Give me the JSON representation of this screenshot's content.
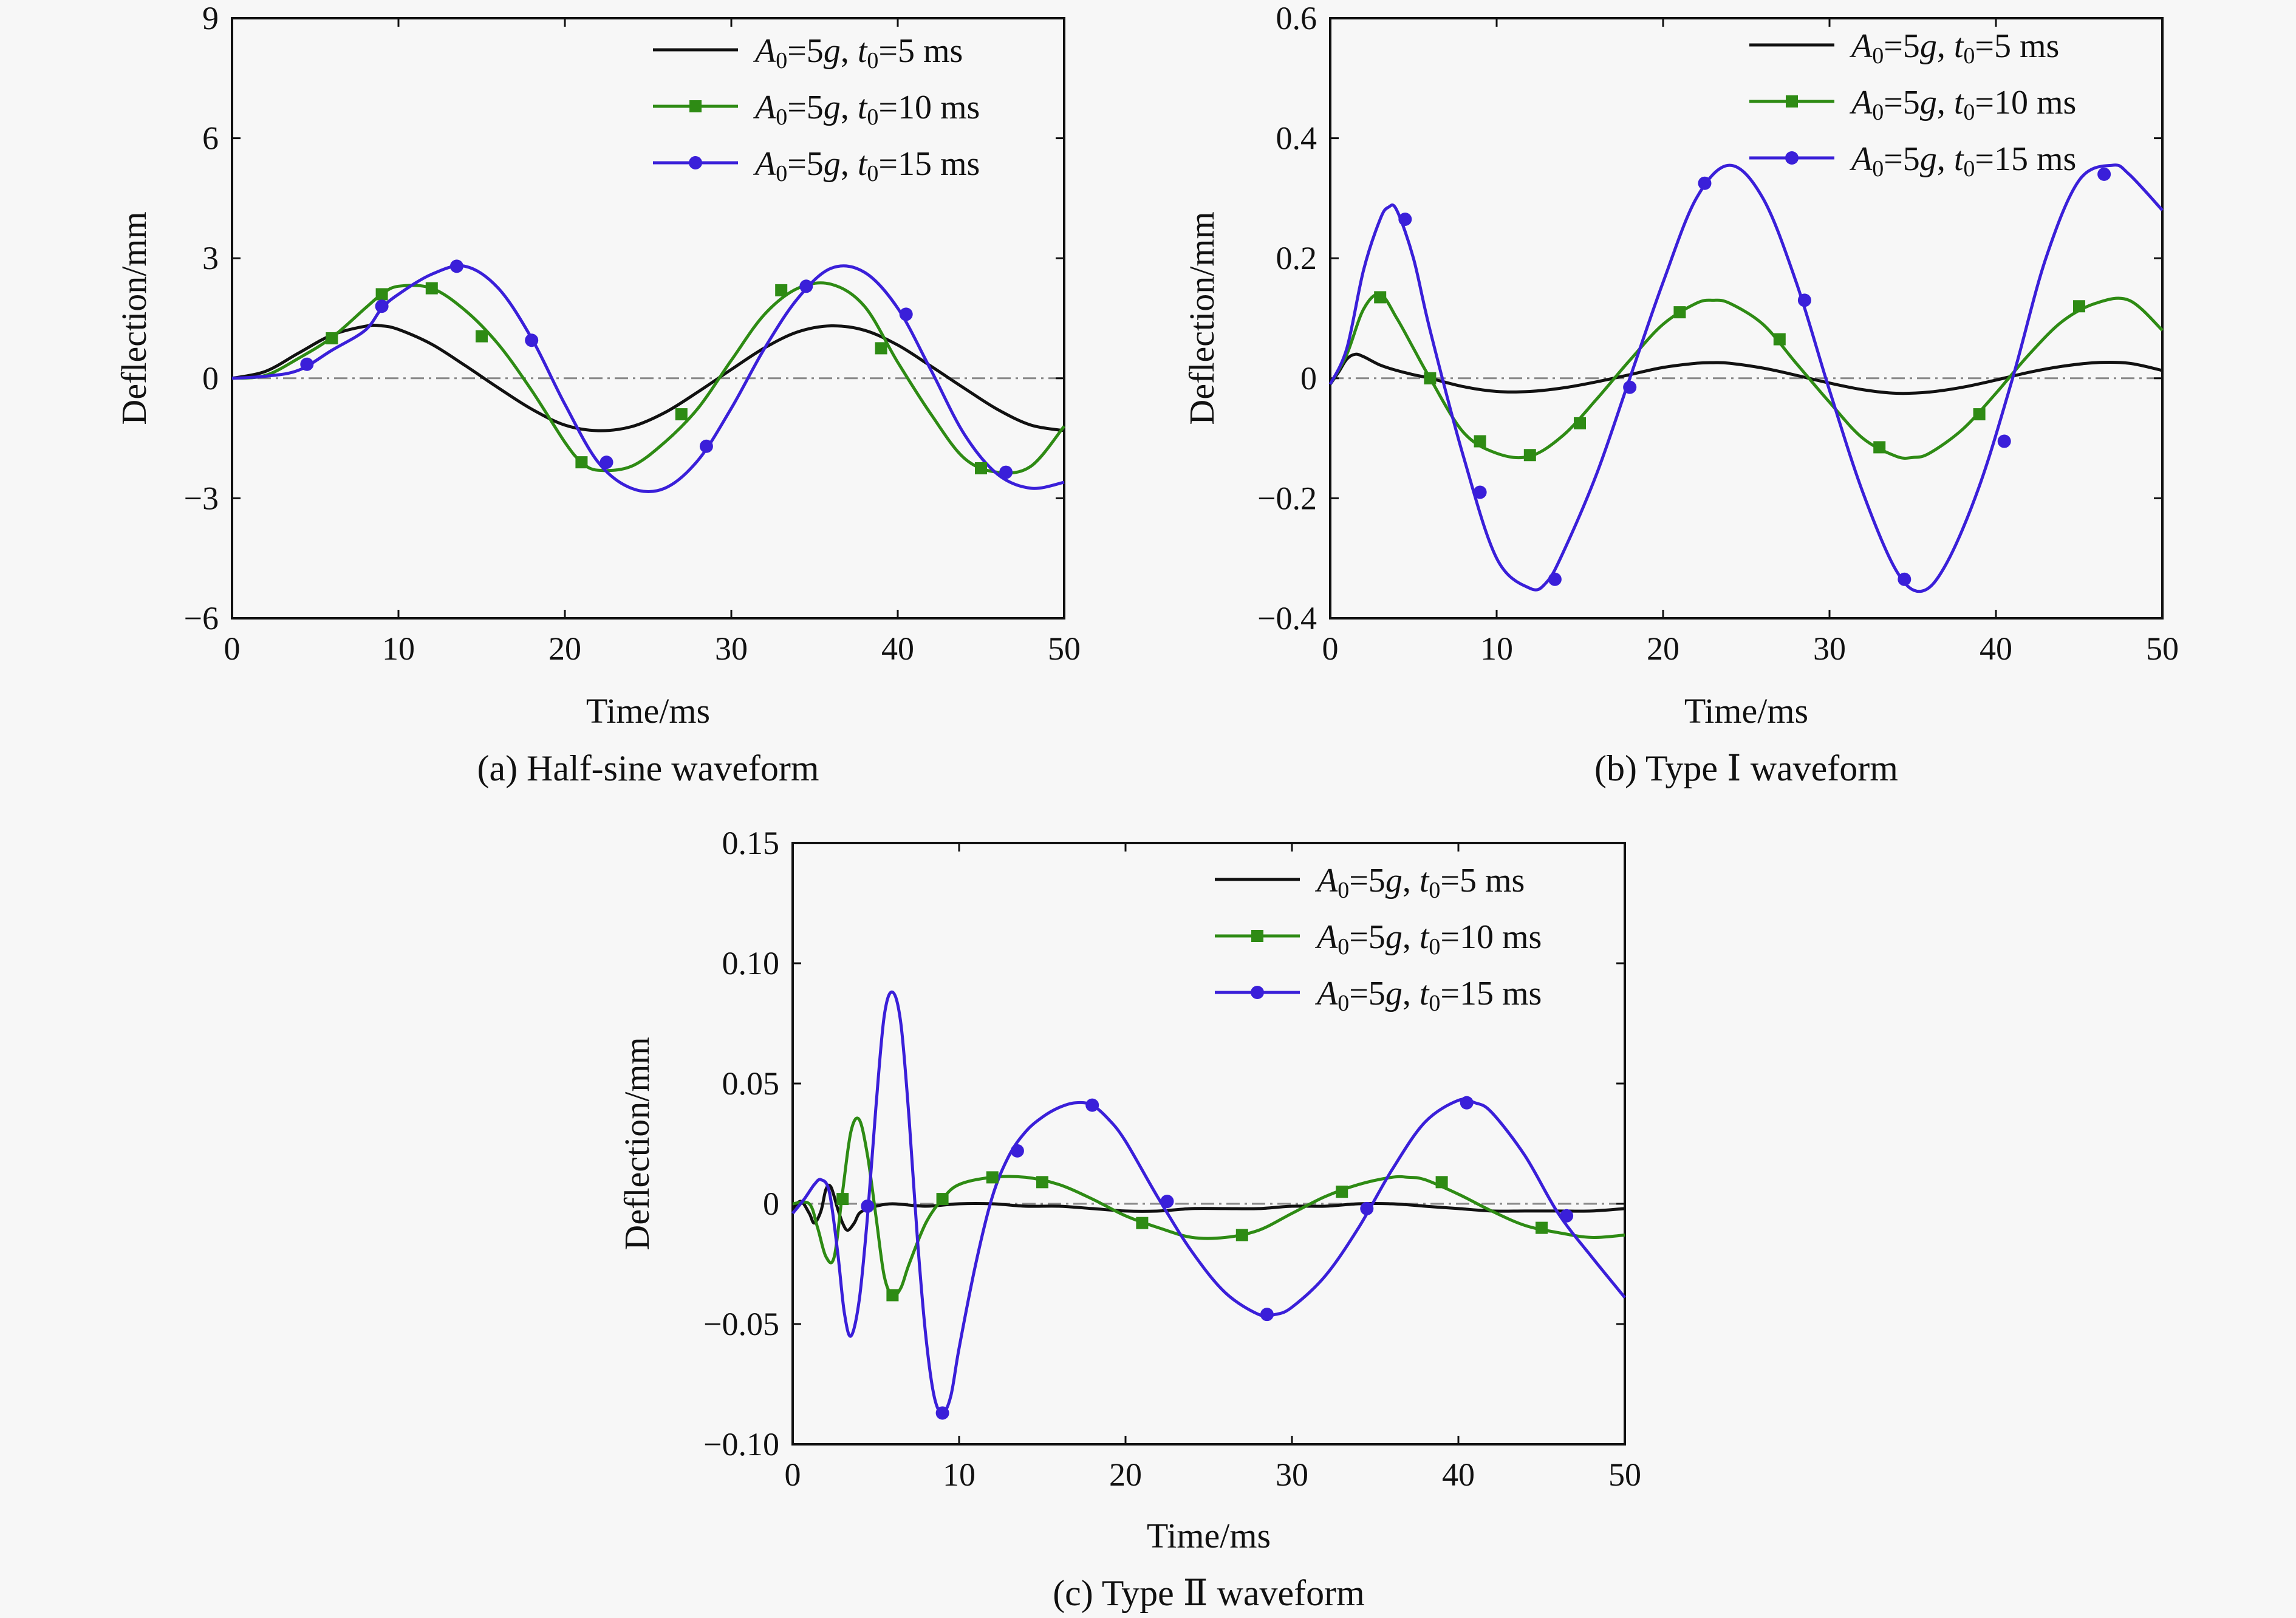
{
  "colors": {
    "black": "#111111",
    "green": "#2e8b14",
    "blue": "#3a1fd9",
    "zero": "#8a8a8a",
    "background": "#f7f7f7"
  },
  "legend": [
    {
      "A": "A",
      "A_sub": "0",
      "eq1": "=5",
      "g": "g",
      "sep": ", ",
      "t": "t",
      "t_sub": "0",
      "eq2": "=5 ms",
      "color": "black",
      "marker": "none"
    },
    {
      "A": "A",
      "A_sub": "0",
      "eq1": "=5",
      "g": "g",
      "sep": ", ",
      "t": "t",
      "t_sub": "0",
      "eq2": "=10 ms",
      "color": "green",
      "marker": "square"
    },
    {
      "A": "A",
      "A_sub": "0",
      "eq1": "=5",
      "g": "g",
      "sep": ", ",
      "t": "t",
      "t_sub": "0",
      "eq2": "=15 ms",
      "color": "blue",
      "marker": "circle"
    }
  ],
  "chart_data": [
    {
      "type": "line",
      "caption": "(a) Half-sine waveform",
      "xlabel": "Time/ms",
      "ylabel": "Deflection/mm",
      "xlim": [
        0,
        50
      ],
      "ylim": [
        -6,
        9
      ],
      "xticks": [
        0,
        10,
        20,
        30,
        40,
        50
      ],
      "yticks": [
        -6,
        -3,
        0,
        3,
        6,
        9
      ],
      "ytick_labels": [
        "−6",
        "−3",
        "0",
        "3",
        "6",
        "9"
      ],
      "legend_position": "top-right",
      "series": [
        {
          "name": "A0=5g, t0=5 ms",
          "color": "black",
          "marker": "none",
          "x": [
            0,
            2,
            4,
            6,
            8,
            9,
            10,
            12,
            14,
            16,
            18,
            20,
            22,
            24,
            26,
            28,
            30,
            32,
            34,
            36,
            38,
            40,
            42,
            44,
            46,
            48,
            50
          ],
          "y": [
            0,
            0.17,
            0.63,
            1.08,
            1.3,
            1.31,
            1.22,
            0.85,
            0.32,
            -0.24,
            -0.77,
            -1.17,
            -1.31,
            -1.21,
            -0.86,
            -0.34,
            0.22,
            0.76,
            1.16,
            1.31,
            1.2,
            0.83,
            0.3,
            -0.25,
            -0.78,
            -1.17,
            -1.31
          ]
        },
        {
          "name": "A0=5g, t0=10 ms",
          "color": "green",
          "marker": "square",
          "x": [
            0,
            2,
            4,
            6,
            8,
            9,
            10,
            12,
            14,
            16,
            18,
            20,
            21,
            22,
            24,
            26,
            28,
            30,
            32,
            34,
            36,
            38,
            40,
            42,
            44,
            46,
            48,
            50
          ],
          "y": [
            0,
            0.07,
            0.5,
            1.02,
            1.75,
            2.1,
            2.3,
            2.25,
            1.7,
            0.85,
            -0.3,
            -1.6,
            -2.1,
            -2.3,
            -2.2,
            -1.6,
            -0.75,
            0.45,
            1.6,
            2.25,
            2.35,
            1.8,
            0.4,
            -0.9,
            -2,
            -2.35,
            -2.2,
            -1.2
          ]
        },
        {
          "name": "A0=5g, t0=15 ms",
          "color": "blue",
          "marker": "circle",
          "x": [
            0,
            2,
            4,
            6,
            8,
            9,
            10,
            12,
            14,
            16,
            18,
            20,
            22,
            24,
            26,
            28,
            30,
            32,
            34,
            36,
            38,
            40,
            42,
            44,
            46,
            48,
            50
          ],
          "y": [
            0,
            0.05,
            0.2,
            0.7,
            1.2,
            1.75,
            2.1,
            2.6,
            2.8,
            2.25,
            1,
            -0.65,
            -2.1,
            -2.75,
            -2.75,
            -2.05,
            -0.75,
            0.75,
            2,
            2.75,
            2.65,
            1.75,
            0.2,
            -1.4,
            -2.4,
            -2.75,
            -2.6
          ]
        }
      ],
      "markers": {
        "green": {
          "x": [
            6,
            9,
            12,
            15,
            21,
            27,
            33,
            39,
            45
          ],
          "y": [
            1.0,
            2.1,
            2.25,
            1.05,
            -2.1,
            -0.9,
            2.2,
            0.75,
            -2.25
          ]
        },
        "blue": {
          "x": [
            4.5,
            9,
            13.5,
            18,
            22.5,
            28.5,
            34.5,
            40.5,
            46.5
          ],
          "y": [
            0.35,
            1.8,
            2.8,
            0.95,
            -2.1,
            -1.7,
            2.3,
            1.6,
            -2.35
          ]
        }
      }
    },
    {
      "type": "line",
      "caption": "(b) Type Ⅰ waveform",
      "xlabel": "Time/ms",
      "ylabel": "Deflection/mm",
      "xlim": [
        0,
        50
      ],
      "ylim": [
        -0.4,
        0.6
      ],
      "xticks": [
        0,
        10,
        20,
        30,
        40,
        50
      ],
      "yticks": [
        -0.4,
        -0.2,
        0,
        0.2,
        0.4,
        0.6
      ],
      "ytick_labels": [
        "−0.4",
        "−0.2",
        "0",
        "0.2",
        "0.4",
        "0.6"
      ],
      "legend_position": "top-right",
      "series": [
        {
          "name": "A0=5g, t0=5 ms",
          "color": "black",
          "marker": "none",
          "x": [
            0,
            0.5,
            1,
            1.5,
            2,
            3,
            4,
            5,
            6,
            8,
            10,
            12,
            14,
            16,
            18,
            20,
            22,
            23,
            24,
            26,
            28,
            30,
            32,
            34,
            36,
            38,
            40,
            42,
            44,
            46,
            48,
            50
          ],
          "y": [
            -0.01,
            0.01,
            0.032,
            0.04,
            0.036,
            0.022,
            0.013,
            0.006,
            0,
            -0.014,
            -0.022,
            -0.022,
            -0.016,
            -0.006,
            0.006,
            0.018,
            0.025,
            0.026,
            0.025,
            0.017,
            0.005,
            -0.008,
            -0.019,
            -0.025,
            -0.023,
            -0.015,
            -0.003,
            0.01,
            0.02,
            0.026,
            0.025,
            0.013
          ]
        },
        {
          "name": "A0=5g, t0=10 ms",
          "color": "green",
          "marker": "square",
          "x": [
            0,
            1,
            2,
            3,
            4,
            5,
            6,
            8,
            10,
            12,
            14,
            16,
            18,
            20,
            22,
            23,
            24,
            26,
            28,
            30,
            32,
            34,
            35,
            36,
            38,
            40,
            42,
            44,
            46,
            48,
            50
          ],
          "y": [
            -0.01,
            0.04,
            0.115,
            0.14,
            0.1,
            0.05,
            0,
            -0.09,
            -0.125,
            -0.13,
            -0.095,
            -0.035,
            0.03,
            0.09,
            0.125,
            0.13,
            0.125,
            0.09,
            0.025,
            -0.04,
            -0.1,
            -0.13,
            -0.132,
            -0.125,
            -0.085,
            -0.025,
            0.04,
            0.095,
            0.125,
            0.13,
            0.08
          ]
        },
        {
          "name": "A0=5g, t0=15 ms",
          "color": "blue",
          "marker": "circle",
          "x": [
            0,
            1,
            2,
            3,
            3.5,
            4,
            5,
            6,
            8,
            10,
            12,
            13,
            14,
            16,
            18,
            20,
            22,
            24,
            26,
            28,
            30,
            32,
            34,
            35.5,
            37,
            39,
            41,
            43,
            45,
            47,
            48,
            50
          ],
          "y": [
            -0.01,
            0.05,
            0.18,
            0.265,
            0.285,
            0.28,
            0.2,
            0.08,
            -0.13,
            -0.3,
            -0.35,
            -0.34,
            -0.29,
            -0.16,
            0,
            0.16,
            0.3,
            0.355,
            0.3,
            0.16,
            -0.02,
            -0.19,
            -0.32,
            -0.355,
            -0.31,
            -0.18,
            0,
            0.2,
            0.33,
            0.355,
            0.34,
            0.28
          ]
        }
      ],
      "markers": {
        "green": {
          "x": [
            3,
            6,
            9,
            12,
            15,
            21,
            27,
            33,
            39,
            45
          ],
          "y": [
            0.135,
            0,
            -0.105,
            -0.128,
            -0.075,
            0.11,
            0.065,
            -0.115,
            -0.06,
            0.12
          ]
        },
        "blue": {
          "x": [
            4.5,
            9,
            13.5,
            18,
            22.5,
            28.5,
            34.5,
            40.5,
            46.5
          ],
          "y": [
            0.265,
            -0.19,
            -0.335,
            -0.015,
            0.325,
            0.13,
            -0.335,
            -0.105,
            0.34
          ]
        }
      }
    },
    {
      "type": "line",
      "caption": "(c) Type Ⅱ waveform",
      "xlabel": "Time/ms",
      "ylabel": "Deflection/mm",
      "xlim": [
        0,
        50
      ],
      "ylim": [
        -0.1,
        0.15
      ],
      "xticks": [
        0,
        10,
        20,
        30,
        40,
        50
      ],
      "yticks": [
        -0.1,
        -0.05,
        0,
        0.05,
        0.1,
        0.15
      ],
      "ytick_labels": [
        "−0.10",
        "−0.05",
        "0",
        "0.05",
        "0.10",
        "0.15"
      ],
      "legend_position": "top-right",
      "series": [
        {
          "name": "A0=5g, t0=5 ms",
          "color": "black",
          "marker": "none",
          "x": [
            0,
            0.5,
            1,
            1.3,
            1.7,
            2,
            2.3,
            2.7,
            3,
            3.3,
            3.7,
            4,
            4.5,
            5,
            6,
            8,
            10,
            12,
            14,
            16,
            18,
            20,
            22,
            24,
            26,
            28,
            30,
            32,
            34,
            36,
            38,
            40,
            42,
            44,
            46,
            48,
            50
          ],
          "y": [
            -0.002,
            0.001,
            -0.004,
            -0.008,
            -0.003,
            0.006,
            0.007,
            -0.002,
            -0.008,
            -0.011,
            -0.008,
            -0.004,
            -0.002,
            -0.001,
            0,
            -0.001,
            0,
            0,
            -0.001,
            -0.001,
            -0.002,
            -0.003,
            -0.003,
            -0.002,
            -0.002,
            -0.002,
            -0.001,
            -0.001,
            0,
            0,
            -0.001,
            -0.002,
            -0.003,
            -0.003,
            -0.003,
            -0.003,
            -0.002
          ]
        },
        {
          "name": "A0=5g, t0=10 ms",
          "color": "green",
          "marker": "square",
          "x": [
            0,
            1,
            1.5,
            2,
            2.5,
            3,
            3.5,
            4,
            4.5,
            5,
            5.5,
            6,
            6.5,
            7,
            8,
            9,
            10,
            12,
            14,
            16,
            18,
            20,
            22,
            24,
            26,
            28,
            30,
            32,
            34,
            36,
            37,
            38,
            40,
            42,
            44,
            46,
            48,
            50
          ],
          "y": [
            0,
            0,
            -0.01,
            -0.022,
            -0.022,
            0.005,
            0.03,
            0.035,
            0.02,
            -0.005,
            -0.03,
            -0.038,
            -0.035,
            -0.025,
            -0.008,
            0.002,
            0.008,
            0.011,
            0.011,
            0.008,
            0.002,
            -0.005,
            -0.01,
            -0.014,
            -0.014,
            -0.011,
            -0.004,
            0.003,
            0.008,
            0.011,
            0.011,
            0.01,
            0.004,
            -0.003,
            -0.009,
            -0.012,
            -0.014,
            -0.013
          ]
        },
        {
          "name": "A0=5g, t0=15 ms",
          "color": "blue",
          "marker": "circle",
          "x": [
            0,
            0.7,
            1.3,
            1.7,
            2.2,
            2.7,
            3.1,
            3.5,
            4,
            4.5,
            5,
            5.5,
            6,
            6.5,
            7,
            7.5,
            8,
            8.5,
            9,
            9.5,
            10,
            11,
            12,
            13,
            14,
            15,
            16,
            17,
            18,
            19,
            20,
            22,
            24,
            26,
            28,
            29,
            30,
            32,
            34,
            36,
            38,
            40,
            41,
            42,
            44,
            46,
            48,
            50
          ],
          "y": [
            -0.004,
            0.002,
            0.008,
            0.01,
            0.005,
            -0.02,
            -0.045,
            -0.055,
            -0.04,
            -0.005,
            0.04,
            0.078,
            0.088,
            0.075,
            0.035,
            -0.015,
            -0.055,
            -0.08,
            -0.087,
            -0.08,
            -0.06,
            -0.025,
            0.003,
            0.02,
            0.03,
            0.036,
            0.04,
            0.042,
            0.041,
            0.035,
            0.026,
            0.002,
            -0.02,
            -0.037,
            -0.046,
            -0.046,
            -0.043,
            -0.03,
            -0.01,
            0.014,
            0.034,
            0.043,
            0.042,
            0.038,
            0.02,
            -0.004,
            -0.022,
            -0.039
          ]
        }
      ],
      "markers": {
        "green": {
          "x": [
            3,
            6,
            9,
            12,
            15,
            21,
            27,
            33,
            39,
            45
          ],
          "y": [
            0.002,
            -0.038,
            0.002,
            0.011,
            0.009,
            -0.008,
            -0.013,
            0.005,
            0.009,
            -0.01
          ]
        },
        "blue": {
          "x": [
            4.5,
            9,
            13.5,
            18,
            22.5,
            28.5,
            34.5,
            40.5,
            46.5
          ],
          "y": [
            -0.001,
            -0.087,
            0.022,
            0.041,
            0.001,
            -0.046,
            -0.002,
            0.042,
            -0.005
          ]
        }
      }
    }
  ]
}
